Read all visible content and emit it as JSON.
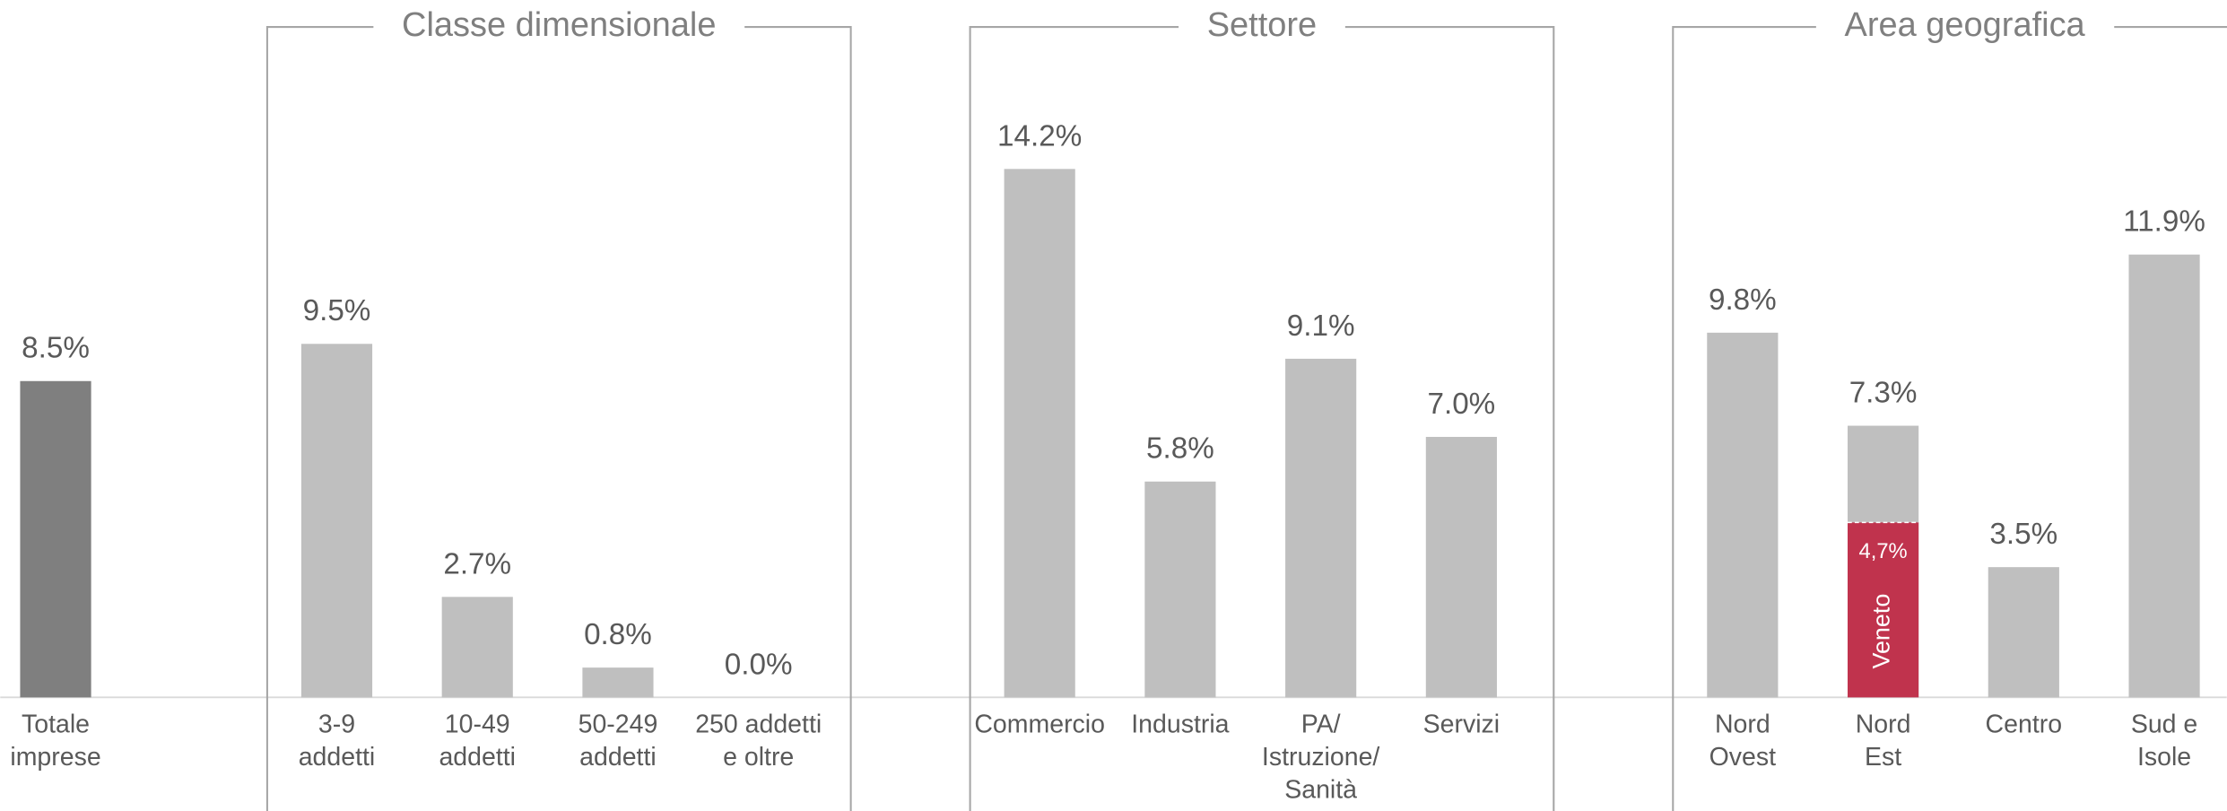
{
  "chart_data": {
    "type": "bar",
    "ylim": [
      0,
      15
    ],
    "groups": [
      {
        "categories": [
          [
            "Totale",
            "imprese"
          ]
        ],
        "values": [
          8.5
        ],
        "value_labels": [
          "8.5%"
        ],
        "color": "#7f7f7f"
      },
      {
        "title": "Classe dimensionale",
        "categories": [
          [
            "3-9",
            "addetti"
          ],
          [
            "10-49",
            "addetti"
          ],
          [
            "50-249",
            "addetti"
          ],
          [
            "250 addetti",
            "e oltre"
          ]
        ],
        "values": [
          9.5,
          2.7,
          0.8,
          0.0
        ],
        "value_labels": [
          "9.5%",
          "2.7%",
          "0.8%",
          "0.0%"
        ],
        "color": "#bfbfbf"
      },
      {
        "title": "Settore",
        "categories": [
          [
            "Commercio"
          ],
          [
            "Industria"
          ],
          [
            "PA/",
            "Istruzione/",
            "Sanità"
          ],
          [
            "Servizi"
          ]
        ],
        "values": [
          14.2,
          5.8,
          9.1,
          7.0
        ],
        "value_labels": [
          "14.2%",
          "5.8%",
          "9.1%",
          "7.0%"
        ],
        "color": "#bfbfbf"
      },
      {
        "title": "Area geografica",
        "categories": [
          [
            "Nord",
            "Ovest"
          ],
          [
            "Nord",
            "Est"
          ],
          [
            "Centro"
          ],
          [
            "Sud e",
            "Isole"
          ]
        ],
        "values": [
          9.8,
          7.3,
          3.5,
          11.9
        ],
        "value_labels": [
          "9.8%",
          "7.3%",
          "3.5%",
          "11.9%"
        ],
        "color": "#bfbfbf",
        "overlay": {
          "name": "Veneto",
          "color": "#c0334d",
          "values": [
            null,
            4.7,
            null,
            null
          ],
          "value_labels": [
            null,
            "4,7%",
            null,
            null
          ]
        }
      }
    ]
  }
}
